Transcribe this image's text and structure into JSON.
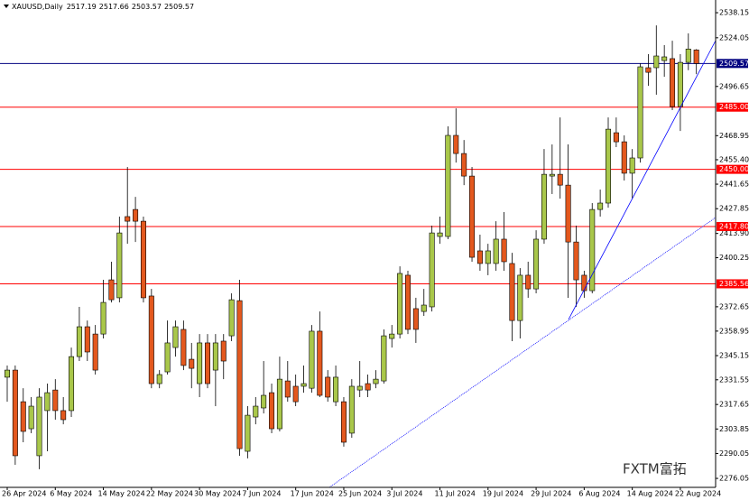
{
  "chart_data": {
    "type": "candlestick",
    "title": "XAUUSD,Daily",
    "up_color": "#a9c74a",
    "down_color": "#e3581e",
    "ylim": [
      2271.0,
      2545.3
    ],
    "yticks": [
      2538.15,
      2524.05,
      2496.65,
      2468.95,
      {
        "value": 2455.4,
        "label": "2455.40"
      },
      2441.65,
      2427.85,
      {
        "value": 2413.9,
        "label": "2413.90"
      },
      2400.25,
      2372.65,
      2358.95,
      2345.15,
      2331.55,
      2317.65,
      2303.85,
      2290.05,
      2276.05
    ],
    "hlines": [
      {
        "value": 2509.57,
        "color": "#000080"
      },
      {
        "value": 2485,
        "label": "2485.00",
        "color": "#ff0000"
      },
      {
        "value": 2450,
        "label": "2450.00",
        "color": "#ff0000"
      },
      {
        "value": 2417.8,
        "label": "2417.80",
        "color": "#ff0000"
      },
      {
        "value": 2385.56,
        "color": "#ff0000"
      }
    ],
    "categories": [
      "26 Apr 2024",
      null,
      null,
      null,
      null,
      null,
      "6 May 2024",
      null,
      null,
      null,
      null,
      null,
      "14 May 2024",
      null,
      null,
      null,
      null,
      null,
      "22 May 2024",
      null,
      null,
      null,
      null,
      null,
      "30 May 2024",
      null,
      null,
      null,
      null,
      null,
      "7 Jun 2024",
      null,
      null,
      null,
      null,
      null,
      "17 Jun 2024",
      null,
      null,
      null,
      null,
      null,
      "25 Jun 2024",
      null,
      null,
      null,
      null,
      null,
      "3 Jul 2024",
      null,
      null,
      null,
      null,
      null,
      "11 Jul 2024",
      null,
      null,
      null,
      null,
      null,
      "19 Jul 2024",
      null,
      null,
      null,
      null,
      null,
      "29 Jul 2024",
      null,
      null,
      null,
      null,
      null,
      "6 Aug 2024",
      null,
      null,
      null,
      null,
      null,
      "14 Aug 2024",
      null,
      null,
      null,
      null,
      null,
      "22 Aug 2024",
      null,
      null
    ],
    "candles": [
      {
        "open": 2333.0,
        "high": 2339.6,
        "low": 2319.2,
        "close": 2337.0
      },
      {
        "open": 2337.0,
        "high": 2339.6,
        "low": 2283.7,
        "close": 2288.8
      },
      {
        "open": 2319.2,
        "high": 2326.8,
        "low": 2296.4,
        "close": 2302.5
      },
      {
        "open": 2304.0,
        "high": 2321.8,
        "low": 2301.5,
        "close": 2316.7
      },
      {
        "open": 2288.8,
        "high": 2326.8,
        "low": 2281.2,
        "close": 2321.8
      },
      {
        "open": 2314.2,
        "high": 2329.4,
        "low": 2291.3,
        "close": 2324.3
      },
      {
        "open": 2325.8,
        "high": 2331.9,
        "low": 2309.1,
        "close": 2314.2
      },
      {
        "open": 2314.2,
        "high": 2321.8,
        "low": 2306.5,
        "close": 2309.1
      },
      {
        "open": 2314.2,
        "high": 2349.7,
        "low": 2310.6,
        "close": 2344.6
      },
      {
        "open": 2344.6,
        "high": 2372.6,
        "low": 2342.1,
        "close": 2361.4
      },
      {
        "open": 2361.4,
        "high": 2364.9,
        "low": 2342.1,
        "close": 2347.2
      },
      {
        "open": 2357.3,
        "high": 2362.4,
        "low": 2334.5,
        "close": 2337.0
      },
      {
        "open": 2357.3,
        "high": 2387.8,
        "low": 2354.8,
        "close": 2375.1
      },
      {
        "open": 2387.8,
        "high": 2398.0,
        "low": 2375.1,
        "close": 2376.6
      },
      {
        "open": 2377.7,
        "high": 2423.4,
        "low": 2375.1,
        "close": 2414.2
      },
      {
        "open": 2423.4,
        "high": 2451.3,
        "low": 2408.1,
        "close": 2420.8
      },
      {
        "open": 2427.4,
        "high": 2434.5,
        "low": 2409.1,
        "close": 2420.8
      },
      {
        "open": 2420.8,
        "high": 2423.4,
        "low": 2375.1,
        "close": 2377.7
      },
      {
        "open": 2378.7,
        "high": 2382.7,
        "low": 2326.8,
        "close": 2329.4
      },
      {
        "open": 2329.4,
        "high": 2337.0,
        "low": 2326.8,
        "close": 2334.5
      },
      {
        "open": 2336.0,
        "high": 2364.9,
        "low": 2334.5,
        "close": 2352.3
      },
      {
        "open": 2349.7,
        "high": 2364.9,
        "low": 2344.6,
        "close": 2361.4
      },
      {
        "open": 2359.9,
        "high": 2364.9,
        "low": 2337.0,
        "close": 2339.6
      },
      {
        "open": 2343.1,
        "high": 2352.3,
        "low": 2326.8,
        "close": 2338.0
      },
      {
        "open": 2329.4,
        "high": 2357.3,
        "low": 2321.8,
        "close": 2352.3
      },
      {
        "open": 2352.3,
        "high": 2357.3,
        "low": 2326.8,
        "close": 2329.4
      },
      {
        "open": 2337.0,
        "high": 2357.3,
        "low": 2316.7,
        "close": 2352.3
      },
      {
        "open": 2353.3,
        "high": 2357.3,
        "low": 2331.9,
        "close": 2342.1
      },
      {
        "open": 2356.3,
        "high": 2380.2,
        "low": 2353.3,
        "close": 2376.6
      },
      {
        "open": 2376.1,
        "high": 2387.8,
        "low": 2288.8,
        "close": 2292.8
      },
      {
        "open": 2291.3,
        "high": 2316.7,
        "low": 2287.3,
        "close": 2311.6
      },
      {
        "open": 2310.6,
        "high": 2321.8,
        "low": 2306.5,
        "close": 2316.7
      },
      {
        "open": 2315.7,
        "high": 2342.1,
        "low": 2312.6,
        "close": 2322.8
      },
      {
        "open": 2324.3,
        "high": 2329.4,
        "low": 2301.5,
        "close": 2304.0
      },
      {
        "open": 2304.0,
        "high": 2344.6,
        "low": 2302.5,
        "close": 2331.9
      },
      {
        "open": 2330.9,
        "high": 2342.1,
        "low": 2319.2,
        "close": 2321.8
      },
      {
        "open": 2327.9,
        "high": 2334.5,
        "low": 2316.7,
        "close": 2319.2
      },
      {
        "open": 2327.9,
        "high": 2339.6,
        "low": 2324.3,
        "close": 2329.4
      },
      {
        "open": 2326.8,
        "high": 2362.4,
        "low": 2324.3,
        "close": 2358.9
      },
      {
        "open": 2358.9,
        "high": 2370.0,
        "low": 2321.8,
        "close": 2322.8
      },
      {
        "open": 2333.0,
        "high": 2337.0,
        "low": 2319.2,
        "close": 2321.8
      },
      {
        "open": 2319.2,
        "high": 2339.6,
        "low": 2316.7,
        "close": 2333.0
      },
      {
        "open": 2319.2,
        "high": 2321.8,
        "low": 2293.9,
        "close": 2296.4
      },
      {
        "open": 2301.5,
        "high": 2331.9,
        "low": 2298.9,
        "close": 2327.9
      },
      {
        "open": 2325.8,
        "high": 2342.1,
        "low": 2321.8,
        "close": 2327.9
      },
      {
        "open": 2329.4,
        "high": 2334.5,
        "low": 2321.8,
        "close": 2325.8
      },
      {
        "open": 2329.4,
        "high": 2337.0,
        "low": 2326.8,
        "close": 2331.9
      },
      {
        "open": 2330.9,
        "high": 2359.9,
        "low": 2329.4,
        "close": 2356.3
      },
      {
        "open": 2354.8,
        "high": 2362.4,
        "low": 2349.7,
        "close": 2357.3
      },
      {
        "open": 2357.3,
        "high": 2395.4,
        "low": 2354.8,
        "close": 2391.4
      },
      {
        "open": 2390.4,
        "high": 2392.9,
        "low": 2357.3,
        "close": 2359.9
      },
      {
        "open": 2371.6,
        "high": 2377.7,
        "low": 2352.3,
        "close": 2359.9
      },
      {
        "open": 2370.0,
        "high": 2382.7,
        "low": 2367.5,
        "close": 2373.6
      },
      {
        "open": 2372.6,
        "high": 2418.3,
        "low": 2370.0,
        "close": 2414.2
      },
      {
        "open": 2412.2,
        "high": 2423.4,
        "low": 2408.1,
        "close": 2414.2
      },
      {
        "open": 2412.2,
        "high": 2474.2,
        "low": 2410.7,
        "close": 2469.1
      },
      {
        "open": 2469.1,
        "high": 2484.3,
        "low": 2453.8,
        "close": 2458.9
      },
      {
        "open": 2458.9,
        "high": 2466.5,
        "low": 2441.1,
        "close": 2446.2
      },
      {
        "open": 2446.2,
        "high": 2451.3,
        "low": 2398.0,
        "close": 2400.5
      },
      {
        "open": 2404.1,
        "high": 2413.2,
        "low": 2392.9,
        "close": 2397.0
      },
      {
        "open": 2397.0,
        "high": 2408.1,
        "low": 2390.4,
        "close": 2404.1
      },
      {
        "open": 2397.0,
        "high": 2420.8,
        "low": 2392.9,
        "close": 2410.7
      },
      {
        "open": 2410.7,
        "high": 2425.9,
        "low": 2392.9,
        "close": 2398.0
      },
      {
        "open": 2397.0,
        "high": 2403.0,
        "low": 2353.3,
        "close": 2364.9
      },
      {
        "open": 2364.9,
        "high": 2394.4,
        "low": 2354.8,
        "close": 2390.4
      },
      {
        "open": 2390.4,
        "high": 2398.0,
        "low": 2377.7,
        "close": 2382.7
      },
      {
        "open": 2382.7,
        "high": 2415.7,
        "low": 2380.2,
        "close": 2410.7
      },
      {
        "open": 2410.7,
        "high": 2461.4,
        "low": 2408.1,
        "close": 2447.2
      },
      {
        "open": 2446.2,
        "high": 2464.0,
        "low": 2436.1,
        "close": 2447.2
      },
      {
        "open": 2447.2,
        "high": 2479.2,
        "low": 2433.5,
        "close": 2441.1
      },
      {
        "open": 2441.1,
        "high": 2464.0,
        "low": 2377.7,
        "close": 2409.1
      },
      {
        "open": 2409.1,
        "high": 2418.3,
        "low": 2372.6,
        "close": 2387.8
      },
      {
        "open": 2390.4,
        "high": 2392.9,
        "low": 2377.7,
        "close": 2381.7
      },
      {
        "open": 2381.7,
        "high": 2431.0,
        "low": 2380.2,
        "close": 2427.4
      },
      {
        "open": 2427.4,
        "high": 2438.6,
        "low": 2423.4,
        "close": 2431.0
      },
      {
        "open": 2431.0,
        "high": 2479.2,
        "low": 2428.4,
        "close": 2472.6
      },
      {
        "open": 2470.6,
        "high": 2479.2,
        "low": 2462.5,
        "close": 2465.5
      },
      {
        "open": 2465.5,
        "high": 2469.1,
        "low": 2443.7,
        "close": 2447.8
      },
      {
        "open": 2447.8,
        "high": 2461.4,
        "low": 2433.5,
        "close": 2456.4
      },
      {
        "open": 2456.4,
        "high": 2509.7,
        "low": 2453.8,
        "close": 2507.7
      },
      {
        "open": 2507.2,
        "high": 2514.8,
        "low": 2497.0,
        "close": 2504.6
      },
      {
        "open": 2507.2,
        "high": 2531.0,
        "low": 2492.0,
        "close": 2513.8
      },
      {
        "open": 2511.2,
        "high": 2519.9,
        "low": 2502.1,
        "close": 2513.3
      },
      {
        "open": 2512.3,
        "high": 2522.4,
        "low": 2483.3,
        "close": 2485.3
      },
      {
        "open": 2485.3,
        "high": 2514.8,
        "low": 2471.6,
        "close": 2510.2
      },
      {
        "open": 2510.2,
        "high": 2526.5,
        "low": 2505.8,
        "close": 2517.7
      },
      {
        "open": 2517.19,
        "high": 2517.66,
        "low": 2503.57,
        "close": 2509.57
      }
    ],
    "watermark": "FXTM富拓"
  }
}
